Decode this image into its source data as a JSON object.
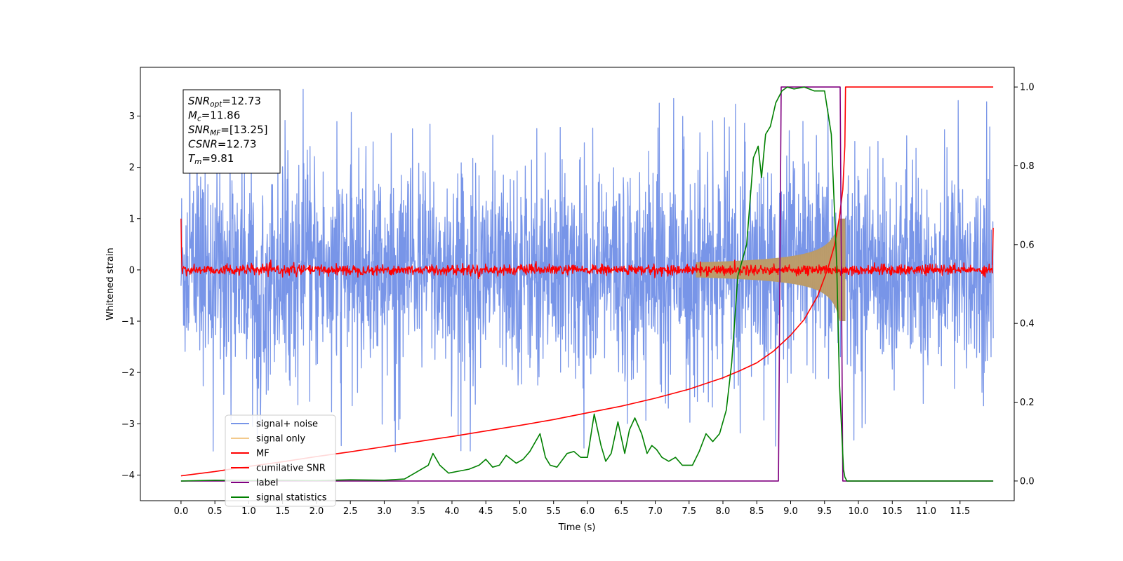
{
  "chart_data": {
    "type": "line",
    "xlabel": "Time (s)",
    "ylabel": "Whitened strain",
    "xlim": [
      -0.6,
      12.3
    ],
    "ylim_left": [
      -4.5,
      3.95
    ],
    "ylim_right": [
      -0.05,
      1.05
    ],
    "x_ticks": [
      0.0,
      0.5,
      1.0,
      1.5,
      2.0,
      2.5,
      3.0,
      3.5,
      4.0,
      4.5,
      5.0,
      5.5,
      6.0,
      6.5,
      7.0,
      7.5,
      8.0,
      8.5,
      9.0,
      9.5,
      10.0,
      10.5,
      11.0,
      11.5
    ],
    "x_tick_labels": [
      "0.0",
      "0.5",
      "1.0",
      "1.5",
      "2.0",
      "2.5",
      "3.0",
      "3.5",
      "4.0",
      "4.5",
      "5.0",
      "5.5",
      "6.0",
      "6.5",
      "7.0",
      "7.5",
      "8.0",
      "8.5",
      "9.0",
      "9.5",
      "10.0",
      "10.5",
      "11.0",
      "11.5"
    ],
    "y_left_ticks": [
      -4,
      -3,
      -2,
      -1,
      0,
      1,
      2,
      3
    ],
    "y_left_tick_labels": [
      "−4",
      "−3",
      "−2",
      "−1",
      "0",
      "1",
      "2",
      "3"
    ],
    "y_right_ticks": [
      0.0,
      0.2,
      0.4,
      0.6,
      0.8,
      1.0
    ],
    "y_right_tick_labels": [
      "0.0",
      "0.2",
      "0.4",
      "0.6",
      "0.8",
      "1.0"
    ],
    "grid": false,
    "legend_position": "lower-left",
    "annotation": [
      {
        "base": "SNR",
        "sub": "opt",
        "value": "=12.73"
      },
      {
        "base": "M",
        "sub": "c",
        "value": "=11.86"
      },
      {
        "base": "SNR",
        "sub": "MF",
        "value": "=[13.25]"
      },
      {
        "base": "CSNR",
        "sub": "",
        "value": "=12.73"
      },
      {
        "base": "T",
        "sub": "m",
        "value": "=9.81"
      }
    ],
    "series": [
      {
        "name": "signal+ noise",
        "axis": "left",
        "color": "#7895e8",
        "description_values": {
          "x_range": [
            0.0,
            11.99
          ],
          "noise_sigma": 1.0,
          "peak_min": -3.55,
          "peak_max": 3.55
        }
      },
      {
        "name": "signal only",
        "axis": "left",
        "color": "#f3c98b",
        "chirp": {
          "t_merge": 9.81,
          "amplitude_at_8_5": 0.2,
          "amplitude_at_9_7": 0.9,
          "end": 9.81
        }
      },
      {
        "name": "MF",
        "axis": "left",
        "color": "#ff0000",
        "description_values": {
          "baseline": 0.0,
          "noise_sigma": 0.05,
          "start_value": 1.0,
          "end_value": 0.82
        }
      },
      {
        "name": "cumilative SNR",
        "axis": "right",
        "color": "#ff0000",
        "x": [
          0.0,
          0.5,
          1.0,
          1.5,
          2.0,
          2.5,
          3.0,
          3.5,
          4.0,
          4.5,
          5.0,
          5.5,
          6.0,
          6.5,
          7.0,
          7.5,
          8.0,
          8.25,
          8.5,
          8.75,
          9.0,
          9.2,
          9.4,
          9.55,
          9.65,
          9.72,
          9.77,
          9.8,
          9.81,
          11.99
        ],
        "y": [
          0.013,
          0.024,
          0.037,
          0.049,
          0.062,
          0.074,
          0.087,
          0.1,
          0.113,
          0.127,
          0.141,
          0.156,
          0.173,
          0.19,
          0.21,
          0.233,
          0.262,
          0.28,
          0.3,
          0.33,
          0.37,
          0.41,
          0.47,
          0.54,
          0.6,
          0.67,
          0.74,
          0.85,
          1.0,
          1.0
        ]
      },
      {
        "name": "label",
        "axis": "right",
        "color": "#800080",
        "x": [
          0.0,
          8.82,
          8.86,
          9.73,
          9.77,
          11.99
        ],
        "y": [
          0.0,
          0.0,
          1.0,
          1.0,
          0.0,
          0.0
        ]
      },
      {
        "name": "signal statistics",
        "axis": "right",
        "color": "#008000",
        "x": [
          0.0,
          0.5,
          1.0,
          1.5,
          2.0,
          2.5,
          3.0,
          3.3,
          3.45,
          3.55,
          3.65,
          3.72,
          3.82,
          3.95,
          4.1,
          4.25,
          4.4,
          4.5,
          4.6,
          4.7,
          4.8,
          4.95,
          5.05,
          5.15,
          5.3,
          5.38,
          5.45,
          5.55,
          5.7,
          5.8,
          5.9,
          6.0,
          6.1,
          6.2,
          6.27,
          6.35,
          6.45,
          6.55,
          6.62,
          6.7,
          6.8,
          6.88,
          6.95,
          7.02,
          7.1,
          7.2,
          7.3,
          7.4,
          7.55,
          7.65,
          7.75,
          7.85,
          7.95,
          8.05,
          8.13,
          8.22,
          8.35,
          8.45,
          8.52,
          8.57,
          8.63,
          8.7,
          8.78,
          8.87,
          8.95,
          9.05,
          9.2,
          9.35,
          9.5,
          9.6,
          9.68,
          9.72,
          9.76,
          9.78,
          9.8,
          9.83,
          9.88,
          11.99
        ],
        "y": [
          0.0,
          0.002,
          0.001,
          0.002,
          0.001,
          0.003,
          0.002,
          0.005,
          0.02,
          0.03,
          0.04,
          0.07,
          0.04,
          0.02,
          0.025,
          0.03,
          0.04,
          0.055,
          0.035,
          0.04,
          0.065,
          0.045,
          0.055,
          0.075,
          0.12,
          0.06,
          0.04,
          0.035,
          0.07,
          0.075,
          0.06,
          0.06,
          0.17,
          0.09,
          0.05,
          0.07,
          0.15,
          0.07,
          0.13,
          0.16,
          0.12,
          0.07,
          0.09,
          0.08,
          0.06,
          0.05,
          0.06,
          0.04,
          0.04,
          0.075,
          0.12,
          0.1,
          0.12,
          0.18,
          0.3,
          0.52,
          0.6,
          0.82,
          0.85,
          0.77,
          0.88,
          0.9,
          0.96,
          0.99,
          1.0,
          0.995,
          1.0,
          0.99,
          0.99,
          0.88,
          0.55,
          0.25,
          0.1,
          0.03,
          0.01,
          0.0,
          0.0,
          0.0
        ]
      }
    ]
  }
}
